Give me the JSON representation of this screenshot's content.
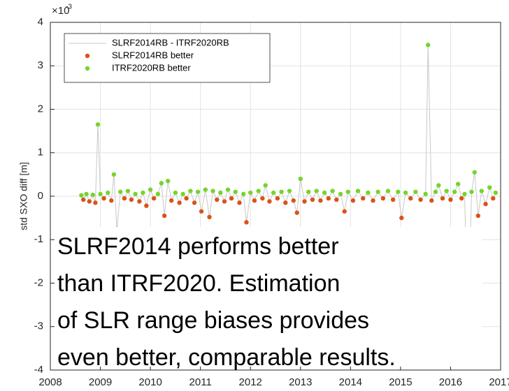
{
  "chart_data": {
    "type": "line",
    "y_label": "std SXO diff [m]",
    "y_exponent_base": "×10",
    "y_exponent_power": "-3",
    "xlim": [
      2008,
      2017
    ],
    "xticks": [
      2008,
      2009,
      2010,
      2011,
      2012,
      2013,
      2014,
      2015,
      2016,
      2017
    ],
    "ylim": [
      -4,
      4
    ],
    "yticks": [
      -4,
      -3,
      -2,
      -1,
      0,
      1,
      2,
      3,
      4
    ],
    "grid": true,
    "legend": "upper left",
    "annotation": [
      "SLRF2014 performs better",
      "than ITRF2020. Estimation",
      "of SLR range biases provides",
      "even better, comparable results."
    ],
    "series": [
      {
        "name": "SLRF2014RB - ITRF2020RB",
        "color": "#c8c8c8",
        "mode": "line",
        "x": [
          2008.62,
          2008.66,
          2008.72,
          2008.78,
          2008.85,
          2008.9,
          2008.95,
          2009.0,
          2009.07,
          2009.15,
          2009.22,
          2009.27,
          2009.33,
          2009.4,
          2009.48,
          2009.55,
          2009.62,
          2009.7,
          2009.78,
          2009.85,
          2009.92,
          2010.0,
          2010.07,
          2010.15,
          2010.22,
          2010.28,
          2010.35,
          2010.42,
          2010.5,
          2010.58,
          2010.65,
          2010.72,
          2010.8,
          2010.88,
          2010.95,
          2011.02,
          2011.1,
          2011.18,
          2011.25,
          2011.33,
          2011.4,
          2011.48,
          2011.55,
          2011.62,
          2011.7,
          2011.78,
          2011.86,
          2011.92,
          2012.0,
          2012.08,
          2012.16,
          2012.24,
          2012.3,
          2012.38,
          2012.46,
          2012.54,
          2012.62,
          2012.7,
          2012.78,
          2012.86,
          2012.93,
          2013.0,
          2013.08,
          2013.16,
          2013.24,
          2013.32,
          2013.4,
          2013.48,
          2013.56,
          2013.64,
          2013.72,
          2013.8,
          2013.88,
          2013.95,
          2014.05,
          2014.15,
          2014.25,
          2014.35,
          2014.45,
          2014.55,
          2014.65,
          2014.75,
          2014.85,
          2014.95,
          2015.02,
          2015.1,
          2015.2,
          2015.3,
          2015.4,
          2015.5,
          2015.55,
          2015.62,
          2015.7,
          2015.76,
          2015.84,
          2015.92,
          2016.0,
          2016.08,
          2016.15,
          2016.22,
          2016.28,
          2016.35,
          2016.42,
          2016.48,
          2016.55,
          2016.62,
          2016.7,
          2016.78,
          2016.85,
          2016.9
        ],
        "values": [
          0.02,
          -0.08,
          0.05,
          -0.12,
          0.03,
          -0.15,
          1.65,
          0.05,
          -0.05,
          0.08,
          -0.1,
          0.5,
          -0.75,
          0.1,
          -0.05,
          0.12,
          -0.08,
          0.05,
          -0.12,
          0.08,
          -0.22,
          0.15,
          -0.05,
          0.05,
          0.3,
          -0.45,
          0.35,
          -0.1,
          0.08,
          -0.15,
          0.05,
          -0.05,
          0.12,
          -0.15,
          0.1,
          -0.35,
          0.15,
          -0.48,
          0.12,
          -0.08,
          0.08,
          -0.12,
          0.15,
          -0.05,
          0.1,
          -0.15,
          0.05,
          -0.6,
          0.08,
          -0.1,
          0.12,
          -0.05,
          0.25,
          -0.12,
          0.08,
          -0.05,
          0.1,
          -0.15,
          0.12,
          -0.1,
          -0.38,
          0.4,
          -0.12,
          0.1,
          -0.08,
          0.12,
          -0.1,
          0.08,
          -0.05,
          0.12,
          -0.08,
          0.05,
          -0.35,
          0.1,
          -0.1,
          0.12,
          -0.05,
          0.08,
          -0.1,
          0.1,
          -0.05,
          0.12,
          -0.08,
          0.1,
          -0.5,
          0.08,
          -0.05,
          0.1,
          -0.08,
          0.05,
          3.48,
          -0.1,
          0.1,
          0.25,
          -0.05,
          0.12,
          -0.08,
          0.1,
          0.28,
          -0.05,
          0.05,
          -3.05,
          0.1,
          0.55,
          -0.45,
          0.12,
          -0.18,
          0.2,
          -0.05,
          0.08
        ]
      },
      {
        "name": "SLRF2014RB better",
        "color": "#d95319",
        "mode": "markers",
        "x": [
          2008.66,
          2008.78,
          2008.9,
          2009.07,
          2009.22,
          2009.33,
          2009.48,
          2009.62,
          2009.78,
          2009.92,
          2010.07,
          2010.28,
          2010.42,
          2010.58,
          2010.72,
          2010.88,
          2011.02,
          2011.18,
          2011.33,
          2011.48,
          2011.62,
          2011.78,
          2011.92,
          2012.08,
          2012.24,
          2012.38,
          2012.54,
          2012.7,
          2012.86,
          2012.93,
          2013.08,
          2013.24,
          2013.4,
          2013.56,
          2013.72,
          2013.88,
          2014.05,
          2014.25,
          2014.45,
          2014.65,
          2014.85,
          2015.02,
          2015.2,
          2015.4,
          2015.62,
          2015.84,
          2016.0,
          2016.22,
          2016.35,
          2016.55,
          2016.7,
          2016.85
        ],
        "values": [
          -0.08,
          -0.12,
          -0.15,
          -0.05,
          -0.1,
          -0.75,
          -0.05,
          -0.08,
          -0.12,
          -0.22,
          -0.05,
          -0.45,
          -0.1,
          -0.15,
          -0.05,
          -0.15,
          -0.35,
          -0.48,
          -0.08,
          -0.12,
          -0.05,
          -0.15,
          -0.6,
          -0.1,
          -0.05,
          -0.12,
          -0.05,
          -0.15,
          -0.1,
          -0.38,
          -0.12,
          -0.08,
          -0.1,
          -0.05,
          -0.08,
          -0.35,
          -0.1,
          -0.05,
          -0.1,
          -0.05,
          -0.08,
          -0.5,
          -0.05,
          -0.08,
          -0.1,
          -0.05,
          -0.08,
          -0.05,
          -3.05,
          -0.45,
          -0.18,
          -0.05
        ]
      },
      {
        "name": "ITRF2020RB better",
        "color": "#77d42a",
        "mode": "markers",
        "x": [
          2008.62,
          2008.72,
          2008.85,
          2008.95,
          2009.0,
          2009.15,
          2009.27,
          2009.4,
          2009.55,
          2009.7,
          2009.85,
          2010.0,
          2010.15,
          2010.22,
          2010.35,
          2010.5,
          2010.65,
          2010.8,
          2010.95,
          2011.1,
          2011.25,
          2011.4,
          2011.55,
          2011.7,
          2011.86,
          2012.0,
          2012.16,
          2012.3,
          2012.46,
          2012.62,
          2012.78,
          2013.0,
          2013.16,
          2013.32,
          2013.48,
          2013.64,
          2013.8,
          2013.95,
          2014.15,
          2014.35,
          2014.55,
          2014.75,
          2014.95,
          2015.1,
          2015.3,
          2015.5,
          2015.55,
          2015.7,
          2015.76,
          2015.92,
          2016.08,
          2016.15,
          2016.28,
          2016.42,
          2016.48,
          2016.62,
          2016.78,
          2016.9
        ],
        "values": [
          0.02,
          0.05,
          0.03,
          1.65,
          0.05,
          0.08,
          0.5,
          0.1,
          0.12,
          0.05,
          0.08,
          0.15,
          0.05,
          0.3,
          0.35,
          0.08,
          0.05,
          0.12,
          0.1,
          0.15,
          0.12,
          0.08,
          0.15,
          0.1,
          0.05,
          0.08,
          0.12,
          0.25,
          0.08,
          0.1,
          0.12,
          0.4,
          0.1,
          0.12,
          0.08,
          0.12,
          0.05,
          0.1,
          0.12,
          0.08,
          0.1,
          0.12,
          0.1,
          0.08,
          0.1,
          0.05,
          3.48,
          0.1,
          0.25,
          0.12,
          0.1,
          0.28,
          0.05,
          0.1,
          0.55,
          0.12,
          0.2,
          0.08
        ]
      }
    ]
  }
}
